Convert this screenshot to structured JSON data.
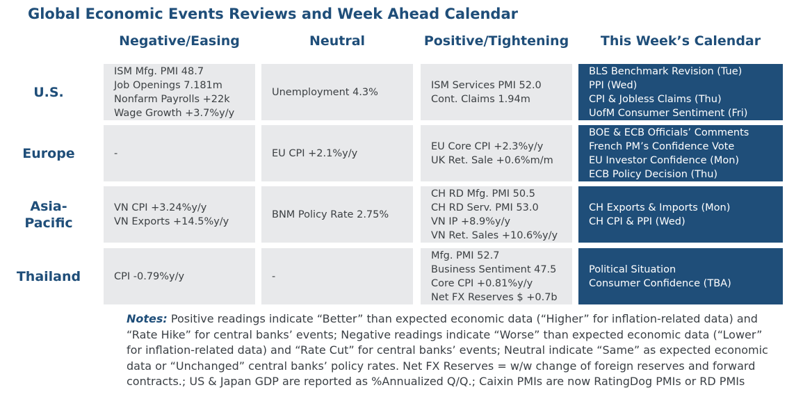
{
  "title": "Global Economic Events Reviews and Week Ahead Calendar",
  "columns": [
    "Negative/Easing",
    "Neutral",
    "Positive/Tightening",
    "This Week’s Calendar"
  ],
  "rows": [
    {
      "region": [
        "U.S."
      ],
      "negative": [
        "ISM Mfg. PMI 48.7",
        "Job Openings 7.181m",
        "Nonfarm Payrolls +22k",
        "Wage Growth +3.7%y/y"
      ],
      "neutral": [
        "Unemployment 4.3%"
      ],
      "positive": [
        "ISM Services PMI 52.0",
        "Cont. Claims 1.94m"
      ],
      "calendar": [
        "BLS Benchmark Revision (Tue)",
        "PPI (Wed)",
        "CPI & Jobless Claims (Thu)",
        "UofM Consumer Sentiment (Fri)"
      ]
    },
    {
      "region": [
        "Europe"
      ],
      "negative": [
        "-"
      ],
      "neutral": [
        "EU CPI +2.1%y/y"
      ],
      "positive": [
        "EU Core CPI +2.3%y/y",
        "UK Ret. Sale +0.6%m/m"
      ],
      "calendar": [
        "BOE & ECB Officials’ Comments",
        "French PM’s Confidence Vote",
        "EU Investor Confidence (Mon)",
        "ECB Policy Decision (Thu)"
      ]
    },
    {
      "region": [
        "Asia-",
        "Pacific"
      ],
      "negative": [
        "VN CPI +3.24%y/y",
        "VN Exports +14.5%y/y"
      ],
      "neutral": [
        "BNM Policy Rate 2.75%"
      ],
      "positive": [
        "CH RD Mfg. PMI 50.5",
        "CH RD Serv. PMI 53.0",
        "VN IP +8.9%y/y",
        "VN Ret. Sales +10.6%y/y"
      ],
      "calendar": [
        "CH Exports & Imports (Mon)",
        "CH CPI & PPI (Wed)"
      ]
    },
    {
      "region": [
        "Thailand"
      ],
      "negative": [
        "CPI -0.79%y/y"
      ],
      "neutral": [
        "-"
      ],
      "positive": [
        "Mfg. PMI 52.7",
        "Business Sentiment 47.5",
        "Core CPI +0.81%y/y",
        "Net FX Reserves $ +0.7b"
      ],
      "calendar": [
        "Political Situation",
        "Consumer Confidence (TBA)"
      ]
    }
  ],
  "notes": {
    "label": "Notes:",
    "text": " Positive readings indicate “Better” than expected economic data (“Higher” for inflation-related data) and “Rate Hike” for central banks’ events; Negative readings indicate “Worse” than expected economic data (“Lower” for inflation-related data) and “Rate Cut” for central banks’ events; Neutral indicate “Same” as expected economic data or “Unchanged” central banks’ policy rates. Net FX Reserves = w/w change of foreign reserves and forward contracts.; US & Japan GDP are reported as %Annualized Q/Q.; Caixin PMIs are now RatingDog PMIs or RD PMIs"
  }
}
